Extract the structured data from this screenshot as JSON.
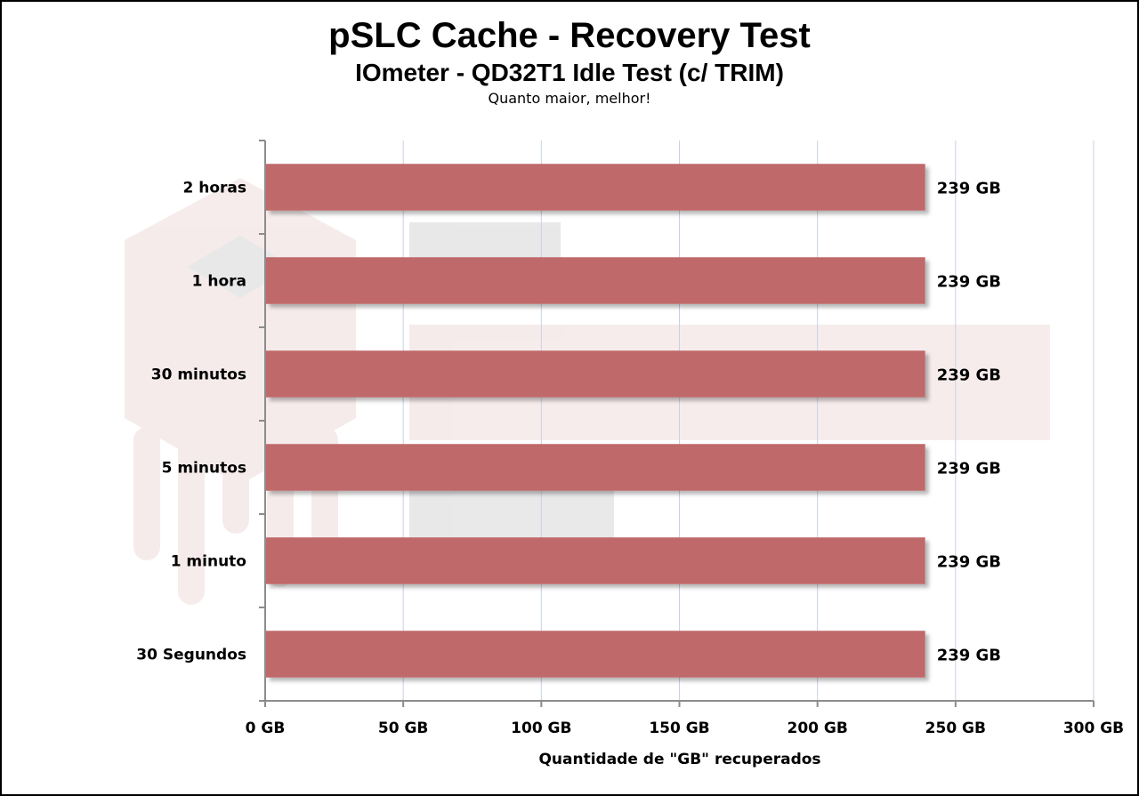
{
  "chart_data": {
    "type": "bar",
    "orientation": "horizontal",
    "title": "pSLC Cache - Recovery Test",
    "subtitle": "IOmeter - QD32T1 Idle Test (c/ TRIM)",
    "note": "Quanto maior, melhor!",
    "xlabel": "Quantidade de \"GB\" recuperados",
    "ylabel": "",
    "xlim": [
      0,
      300
    ],
    "x_ticks": [
      0,
      50,
      100,
      150,
      200,
      250,
      300
    ],
    "x_tick_labels": [
      "0 GB",
      "50 GB",
      "100 GB",
      "150 GB",
      "200 GB",
      "250 GB",
      "300 GB"
    ],
    "categories": [
      "2 horas",
      "1 hora",
      "30 minutos",
      "5 minutos",
      "1 minuto",
      "30 Segundos"
    ],
    "values": [
      239,
      239,
      239,
      239,
      239,
      239
    ],
    "value_labels": [
      "239 GB",
      "239 GB",
      "239 GB",
      "239 GB",
      "239 GB",
      "239 GB"
    ],
    "bar_color": "#c0696a",
    "grid": "vertical",
    "legend": "none"
  }
}
